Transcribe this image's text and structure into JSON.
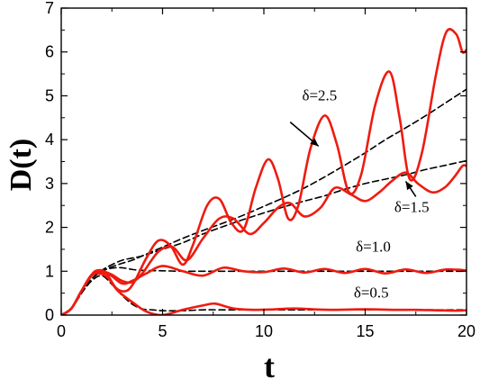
{
  "chart_data": {
    "type": "line",
    "title": "",
    "xlabel": "t",
    "ylabel": "D(t)",
    "xlim": [
      0,
      20
    ],
    "ylim": [
      0,
      7
    ],
    "xticks": [
      "0",
      "5",
      "10",
      "15",
      "20"
    ],
    "yticks": [
      "0",
      "1",
      "2",
      "3",
      "4",
      "5",
      "6",
      "7"
    ],
    "grid": false,
    "legend": "none",
    "colors": {
      "solid": "#ee1b10",
      "dashed": "#000000",
      "axis": "#000000"
    },
    "annotations": [
      {
        "text": "δ=2.5",
        "x": 12.75,
        "y": 4.9
      },
      {
        "text": "δ=1.5",
        "x": 17.3,
        "y": 2.35
      },
      {
        "text": "δ=1.0",
        "x": 15.4,
        "y": 1.45
      },
      {
        "text": "δ=0.5",
        "x": 15.3,
        "y": 0.4
      }
    ],
    "arrows": [
      {
        "from": [
          11.3,
          4.4
        ],
        "to": [
          12.7,
          3.85
        ]
      },
      {
        "from": [
          17.5,
          2.7
        ],
        "to": [
          17.0,
          3.05
        ]
      }
    ],
    "series": [
      {
        "style": "solid",
        "x": [
          0,
          0.5,
          1,
          1.5,
          1.8,
          2.2,
          2.7,
          3.2,
          3.6,
          4.2,
          4.8,
          5.4,
          6.0,
          6.5,
          7.2,
          7.8,
          8.4,
          9.0,
          9.6,
          10.2,
          10.7,
          11.2,
          11.7,
          12.3,
          13.0,
          13.6,
          14.2,
          14.8,
          15.5,
          16.2,
          16.7,
          17.2,
          17.8,
          18.5,
          19.0,
          19.5,
          19.8,
          20
        ],
        "y": [
          0,
          0.15,
          0.55,
          0.92,
          1.02,
          0.97,
          0.62,
          0.55,
          0.75,
          1.3,
          1.7,
          1.58,
          1.15,
          1.6,
          2.5,
          2.65,
          2.1,
          1.95,
          2.9,
          3.55,
          3.1,
          2.2,
          2.5,
          3.8,
          4.55,
          3.9,
          2.8,
          3.2,
          4.8,
          5.55,
          4.5,
          3.1,
          3.7,
          5.5,
          6.45,
          6.4,
          6.0,
          6.05
        ]
      },
      {
        "style": "solid",
        "x": [
          0,
          0.5,
          1,
          1.5,
          2.0,
          2.5,
          3.0,
          3.5,
          4.0,
          4.8,
          5.5,
          6.2,
          7.0,
          7.8,
          8.5,
          9.3,
          10.0,
          10.7,
          11.3,
          12.0,
          12.8,
          13.5,
          14.3,
          15.0,
          15.7,
          16.3,
          17.0,
          17.6,
          18.3,
          18.9,
          19.4,
          19.8,
          20
        ],
        "y": [
          0,
          0.15,
          0.55,
          0.92,
          1.0,
          0.92,
          0.78,
          0.75,
          0.95,
          1.45,
          1.55,
          1.25,
          1.75,
          2.2,
          2.2,
          1.85,
          2.1,
          2.45,
          2.55,
          2.25,
          2.45,
          2.9,
          2.75,
          2.6,
          2.8,
          3.05,
          3.25,
          3.0,
          2.8,
          2.9,
          3.15,
          3.4,
          3.4
        ]
      },
      {
        "style": "solid",
        "x": [
          0,
          0.5,
          1,
          1.5,
          1.9,
          2.4,
          3.0,
          3.5,
          4.2,
          5.0,
          6.0,
          7.0,
          8.0,
          9.0,
          10.0,
          11.0,
          12.0,
          13.0,
          14.0,
          15.0,
          16.0,
          17.0,
          18.0,
          19.0,
          20
        ],
        "y": [
          0,
          0.15,
          0.55,
          0.9,
          0.97,
          0.92,
          0.72,
          0.78,
          0.95,
          1.12,
          1.0,
          0.9,
          1.08,
          1.0,
          0.98,
          1.06,
          0.97,
          1.05,
          0.96,
          1.05,
          0.95,
          1.04,
          0.96,
          1.04,
          1.02
        ]
      },
      {
        "style": "solid",
        "x": [
          0,
          0.5,
          1,
          1.5,
          1.9,
          2.3,
          2.8,
          3.5,
          4.2,
          5.0,
          6.0,
          7.0,
          7.6,
          8.5,
          9.5,
          10.5,
          11.5,
          12.5,
          13.5,
          14.5,
          15.5,
          16.5,
          17.5,
          18.5,
          19.5,
          20
        ],
        "y": [
          0,
          0.15,
          0.55,
          0.9,
          0.95,
          0.85,
          0.55,
          0.3,
          0.08,
          0.0,
          0.12,
          0.22,
          0.26,
          0.15,
          0.12,
          0.13,
          0.15,
          0.13,
          0.12,
          0.13,
          0.13,
          0.12,
          0.12,
          0.11,
          0.1,
          0.11
        ]
      },
      {
        "style": "dashed",
        "x": [
          0,
          0.5,
          1,
          1.5,
          2.0,
          2.5,
          3.0,
          3.5,
          4.0,
          5.0,
          6.0,
          7.0,
          8.0,
          9.0,
          10.0,
          11.0,
          12.0,
          13.0,
          14.0,
          15.0,
          16.0,
          17.0,
          18.0,
          19.0,
          20
        ],
        "y": [
          0,
          0.15,
          0.5,
          0.82,
          1.0,
          1.1,
          1.18,
          1.25,
          1.35,
          1.55,
          1.75,
          1.93,
          2.1,
          2.28,
          2.48,
          2.68,
          2.9,
          3.15,
          3.42,
          3.7,
          4.0,
          4.27,
          4.55,
          4.85,
          5.15
        ]
      },
      {
        "style": "dashed",
        "x": [
          0,
          0.5,
          1,
          1.5,
          2.0,
          2.5,
          3.0,
          3.5,
          4.0,
          5.0,
          6.0,
          7.0,
          8.0,
          9.0,
          10.0,
          11.0,
          12.0,
          13.0,
          14.0,
          15.0,
          16.0,
          17.0,
          18.0,
          19.0,
          20
        ],
        "y": [
          0,
          0.15,
          0.5,
          0.82,
          1.02,
          1.15,
          1.25,
          1.3,
          1.35,
          1.5,
          1.65,
          1.85,
          2.02,
          2.18,
          2.33,
          2.47,
          2.6,
          2.72,
          2.87,
          3.0,
          3.1,
          3.2,
          3.32,
          3.42,
          3.52
        ]
      },
      {
        "style": "dashed",
        "x": [
          0,
          0.5,
          1,
          1.5,
          2.0,
          2.5,
          3.0,
          3.5,
          4.0,
          5.0,
          6.0,
          7.0,
          8.0,
          10.0,
          12.0,
          14.0,
          16.0,
          18.0,
          20
        ],
        "y": [
          0,
          0.15,
          0.5,
          0.82,
          1.0,
          1.07,
          1.08,
          1.04,
          1.02,
          1.01,
          1.0,
          1.0,
          1.0,
          1.0,
          1.0,
          1.0,
          1.0,
          1.0,
          1.0
        ]
      },
      {
        "style": "dashed",
        "x": [
          0,
          0.5,
          1,
          1.5,
          2.0,
          2.5,
          3.0,
          3.5,
          4.0,
          4.5,
          5.0,
          6.0,
          7.0,
          8.0,
          10.0,
          12.0,
          14.0,
          16.0,
          18.0,
          20
        ],
        "y": [
          0,
          0.15,
          0.5,
          0.78,
          0.9,
          0.7,
          0.45,
          0.25,
          0.14,
          0.12,
          0.1,
          0.1,
          0.12,
          0.12,
          0.12,
          0.12,
          0.12,
          0.12,
          0.12,
          0.12
        ]
      }
    ]
  }
}
